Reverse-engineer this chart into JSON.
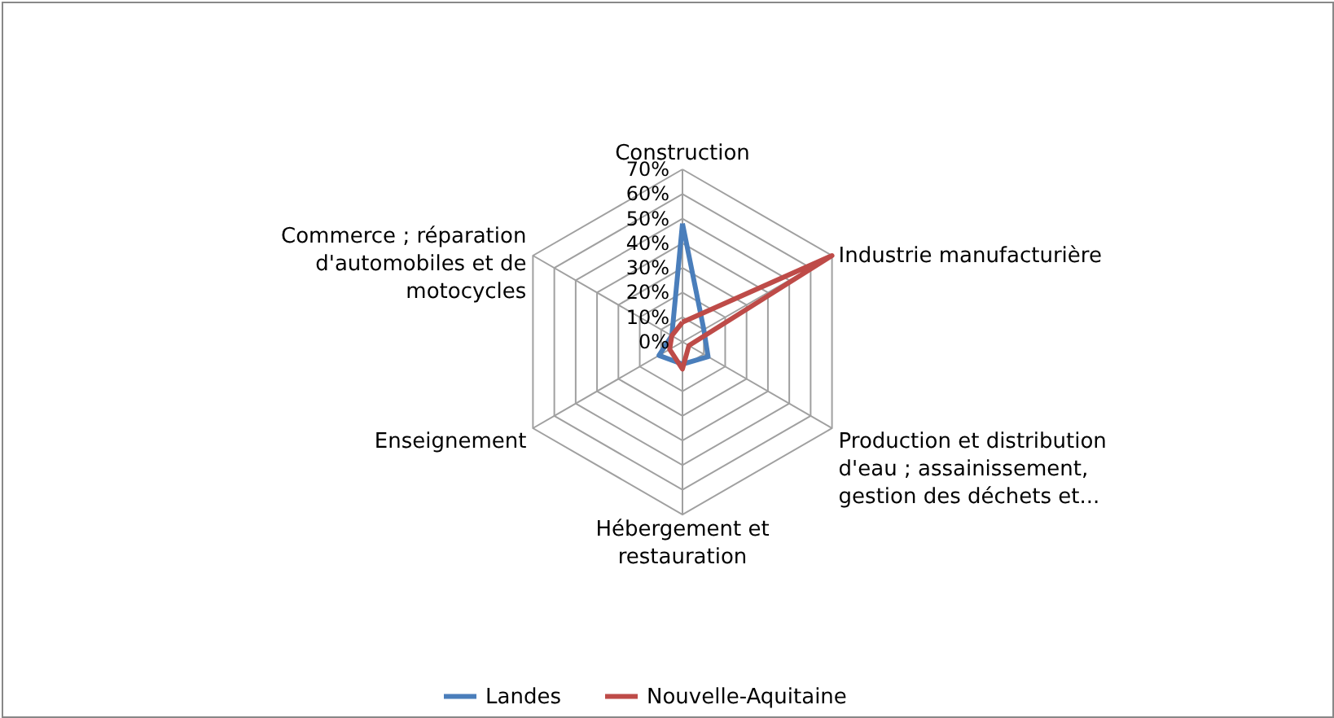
{
  "chart_data": {
    "type": "radar",
    "categories": [
      "Construction",
      "Industrie manufacturière",
      "Production et distribution d'eau ; assainissement, gestion des déchets et...",
      "Hébergement et restauration",
      "Enseignement",
      "Commerce ; réparation d'automobiles et de motocycles"
    ],
    "series": [
      {
        "name": "Landes",
        "color": "#4a7ebb",
        "values": [
          48,
          10,
          12,
          9,
          11,
          5
        ]
      },
      {
        "name": "Nouvelle-Aquitaine",
        "color": "#be4b48",
        "values": [
          8,
          70,
          3,
          11,
          6,
          5
        ]
      }
    ],
    "ylim": [
      0,
      70
    ],
    "yticks": [
      {
        "value": 0,
        "label": "0%"
      },
      {
        "value": 10,
        "label": "10%"
      },
      {
        "value": 20,
        "label": "20%"
      },
      {
        "value": 30,
        "label": "30%"
      },
      {
        "value": 40,
        "label": "40%"
      },
      {
        "value": 50,
        "label": "50%"
      },
      {
        "value": 60,
        "label": "60%"
      },
      {
        "value": 70,
        "label": "70%"
      }
    ],
    "grid": true,
    "legend": "bottom"
  }
}
